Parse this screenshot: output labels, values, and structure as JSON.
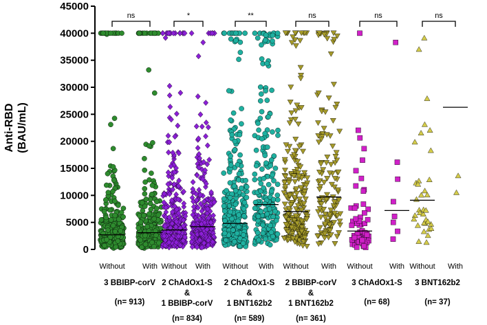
{
  "chart_data": {
    "type": "scatter",
    "title": "",
    "xlabel": "",
    "ylabel": [
      "Anti-RBD",
      "(BAU/mL)"
    ],
    "ylim": [
      0,
      45000
    ],
    "yticks": [
      0,
      5000,
      10000,
      15000,
      20000,
      25000,
      30000,
      35000,
      40000,
      45000
    ],
    "yticklabels": [
      "0",
      "5000",
      "10000",
      "15000",
      "20000",
      "25000",
      "30000",
      "35000",
      "40000",
      "45000"
    ],
    "groups": [
      {
        "name": "3 BBIBP-corV",
        "label_lines": [
          "3 BBIBP-corV"
        ],
        "n_label": "(n= 913)",
        "significance": "ns",
        "color": "#2e8b2e",
        "marker": "circle",
        "series": [
          {
            "name": "Without",
            "median": 2700,
            "count": 620
          },
          {
            "name": "With",
            "median": 3100,
            "count": 293
          }
        ]
      },
      {
        "name": "2 ChAdOx1-S & 1 BBIBP-corV",
        "label_lines": [
          "2 ChAdOx1-S",
          "&",
          "1 BBIBP-corV"
        ],
        "n_label": "(n= 834)",
        "significance": "*",
        "color": "#8b1fd6",
        "marker": "diamond",
        "series": [
          {
            "name": "Without",
            "median": 3600,
            "count": 540
          },
          {
            "name": "With",
            "median": 4200,
            "count": 294
          }
        ]
      },
      {
        "name": "2 ChAdOx1-S & 1 BNT162b2",
        "label_lines": [
          "2 ChAdOx1-S",
          "&",
          "1 BNT162b2"
        ],
        "n_label": "(n= 589)",
        "significance": "**",
        "color": "#1fb0a0",
        "marker": "circle",
        "series": [
          {
            "name": "Without",
            "median": 4800,
            "count": 370
          },
          {
            "name": "With",
            "median": 8300,
            "count": 219
          }
        ]
      },
      {
        "name": "2 BBIBP-corV & 1 BNT162b2",
        "label_lines": [
          "2 BBIBP-corV",
          "&",
          "1 BNT162b2"
        ],
        "n_label": "(n= 361)",
        "significance": "ns",
        "color": "#a59a2a",
        "marker": "triangle-down",
        "series": [
          {
            "name": "Without",
            "median": 7000,
            "count": 230
          },
          {
            "name": "With",
            "median": 9700,
            "count": 131
          }
        ]
      },
      {
        "name": "3 ChAdOx1-S",
        "label_lines": [
          "3 ChAdOx1-S"
        ],
        "n_label": "(n= 68)",
        "significance": "ns",
        "color": "#d020c8",
        "marker": "square",
        "series": [
          {
            "name": "Without",
            "median": 3400,
            "count": 60
          },
          {
            "name": "With",
            "median": 7200,
            "count": 8
          }
        ]
      },
      {
        "name": "3 BNT162b2",
        "label_lines": [
          "3 BNT162b2"
        ],
        "n_label": "(n= 37)",
        "significance": "ns",
        "color": "#d4cc4a",
        "marker": "triangle-up",
        "series": [
          {
            "name": "Without",
            "median": 9100,
            "count": 35
          },
          {
            "name": "With",
            "median": 26300,
            "count": 2
          }
        ]
      }
    ]
  }
}
